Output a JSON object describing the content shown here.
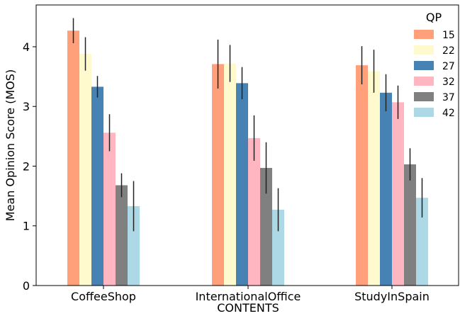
{
  "chart_data": {
    "type": "bar",
    "xlabel": "CONTENTS",
    "ylabel": "Mean Opinion Score (MOS)",
    "ylim": [
      0,
      4.7
    ],
    "yticks": [
      "0",
      "1",
      "2",
      "3",
      "4"
    ],
    "categories": [
      "CoffeeShop",
      "InternationalOffice",
      "StudyInSpain"
    ],
    "legend_title": "QP",
    "legend_position": "top-right",
    "grid": false,
    "series": [
      {
        "name": "15",
        "color": "#FFA07A",
        "values": [
          4.27,
          3.71,
          3.69
        ],
        "errors": [
          0.21,
          0.41,
          0.32
        ]
      },
      {
        "name": "22",
        "color": "#FFFACD",
        "values": [
          3.88,
          3.72,
          3.59
        ],
        "errors": [
          0.28,
          0.31,
          0.36
        ]
      },
      {
        "name": "27",
        "color": "#4682B4",
        "values": [
          3.33,
          3.39,
          3.23
        ],
        "errors": [
          0.18,
          0.27,
          0.31
        ]
      },
      {
        "name": "32",
        "color": "#FFB6C1",
        "values": [
          2.56,
          2.47,
          3.07
        ],
        "errors": [
          0.31,
          0.38,
          0.28
        ]
      },
      {
        "name": "37",
        "color": "#808080",
        "values": [
          1.68,
          1.97,
          2.03
        ],
        "errors": [
          0.2,
          0.43,
          0.27
        ]
      },
      {
        "name": "42",
        "color": "#ADD8E6",
        "values": [
          1.33,
          1.27,
          1.47
        ],
        "errors": [
          0.42,
          0.36,
          0.33
        ]
      }
    ]
  }
}
